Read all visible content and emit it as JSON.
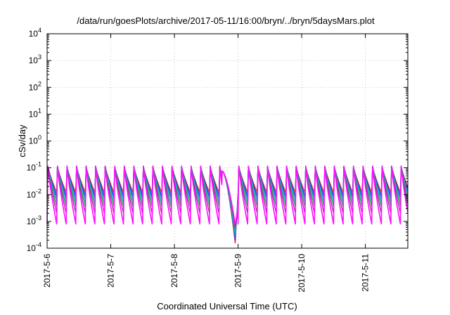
{
  "chart_data": {
    "type": "line",
    "title": "/data/run/goesPlots/archive/2017-05-11/16:00/bryn/../bryn/5daysMars.plot",
    "xlabel": "Coordinated Universal Time (UTC)",
    "ylabel": "cSv/day",
    "xscale": "time",
    "yscale": "log",
    "xlim": [
      "2017-05-06T00:00",
      "2017-05-11T16:00"
    ],
    "ylim": [
      0.0001,
      10000
    ],
    "grid": true,
    "legend": "none",
    "x_ticks": [
      "2017-5-6",
      "2017-5-7",
      "2017-5-8",
      "2017-5-9",
      "2017-5-10",
      "2017-5-11"
    ],
    "y_ticks": [
      {
        "base": "10",
        "exp": "-4",
        "value": 0.0001
      },
      {
        "base": "10",
        "exp": "-3",
        "value": 0.001
      },
      {
        "base": "10",
        "exp": "-2",
        "value": 0.01
      },
      {
        "base": "10",
        "exp": "-1",
        "value": 0.1
      },
      {
        "base": "10",
        "exp": "0",
        "value": 1
      },
      {
        "base": "10",
        "exp": "1",
        "value": 10
      },
      {
        "base": "10",
        "exp": "2",
        "value": 100
      },
      {
        "base": "10",
        "exp": "3",
        "value": 1000
      },
      {
        "base": "10",
        "exp": "4",
        "value": 10000
      }
    ],
    "pattern": {
      "cycle_hours": 3.6,
      "peak_value": 0.12,
      "gap": {
        "start": "2017-05-08T18:00",
        "end": "2017-05-09T00:00"
      },
      "gap_minimum": 0.00015
    },
    "series": [
      {
        "color": "#e0201a",
        "trough_value": 0.012
      },
      {
        "color": "#1540e0",
        "trough_value": 0.009
      },
      {
        "color": "#2a78f0",
        "trough_value": 0.007
      },
      {
        "color": "#22b8c8",
        "trough_value": 0.005
      },
      {
        "color": "#2aa84a",
        "trough_value": 0.0035
      },
      {
        "color": "#b01ab0",
        "trough_value": 0.002
      },
      {
        "color": "#ff10ff",
        "trough_value": 0.0008
      }
    ]
  }
}
